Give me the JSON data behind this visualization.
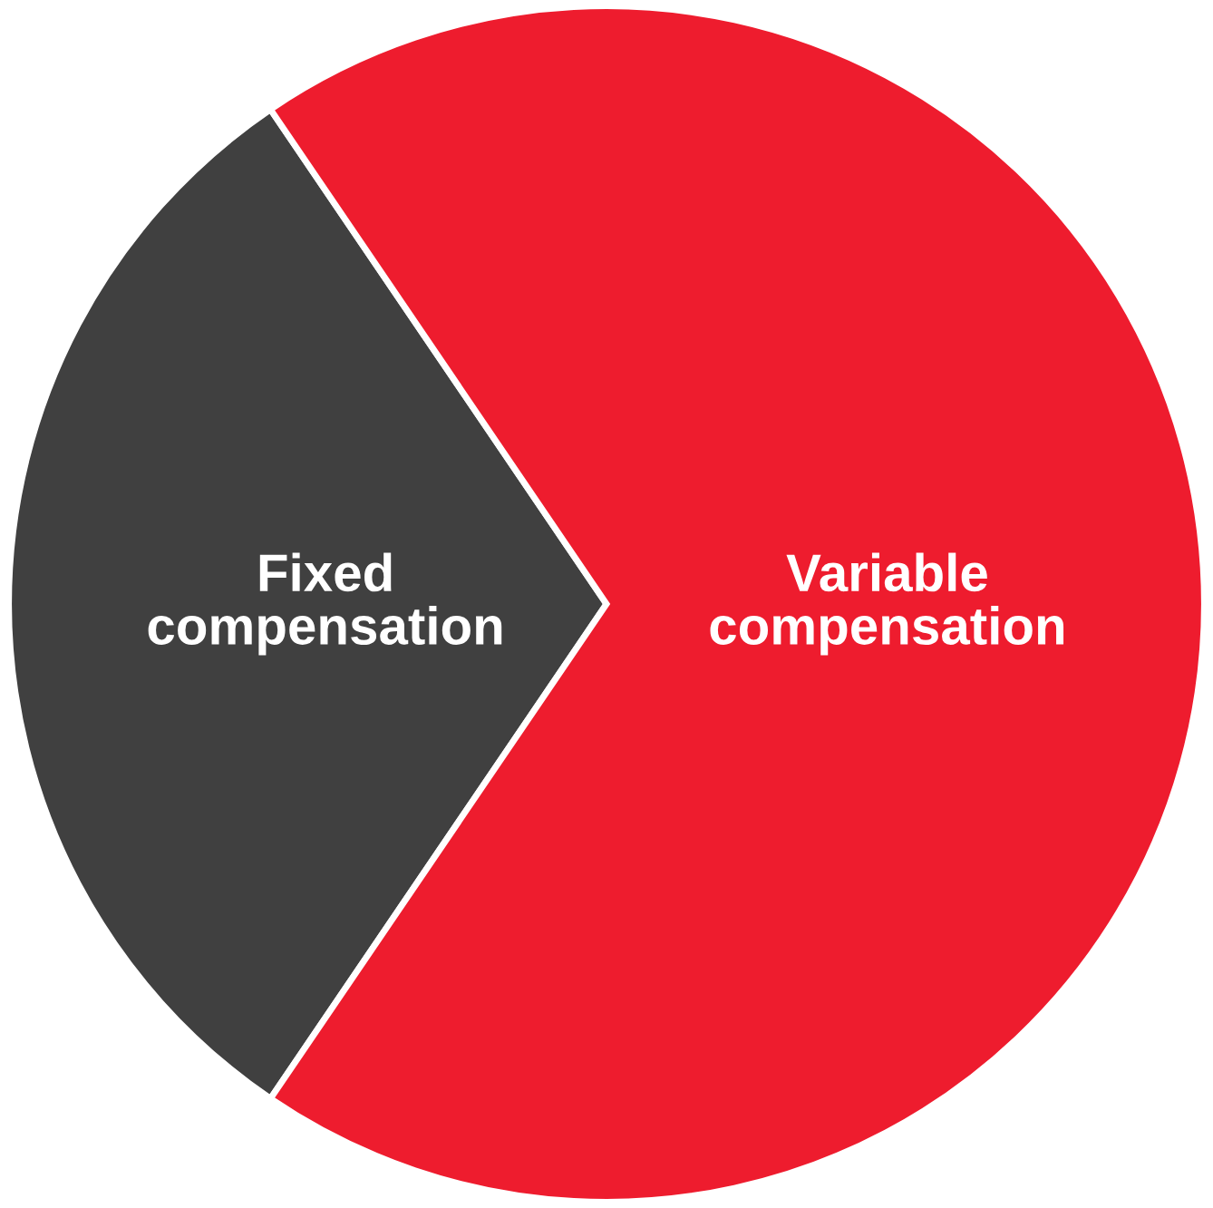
{
  "chart_data": {
    "type": "pie",
    "categories": [
      "Fixed\ncompensation",
      "Variable\ncompensation"
    ],
    "values": [
      31,
      69
    ],
    "colors": [
      "#404040",
      "#ee1c2e"
    ],
    "legend": false
  }
}
